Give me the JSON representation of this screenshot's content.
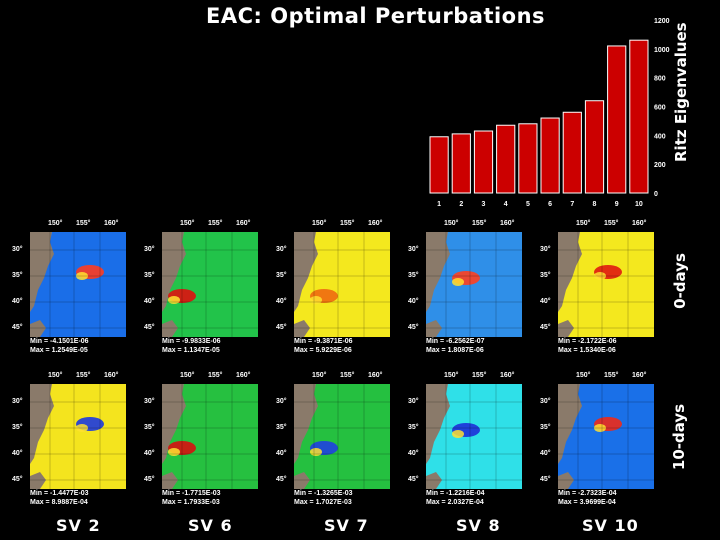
{
  "title": "EAC: Optimal Perturbations",
  "chart_data": [
    {
      "type": "bar",
      "ylabel": "Ritz Eigenvalues",
      "categories": [
        "1",
        "2",
        "3",
        "4",
        "5",
        "6",
        "7",
        "8",
        "9",
        "10"
      ],
      "values": [
        390,
        410,
        430,
        470,
        480,
        520,
        560,
        640,
        1020,
        1060
      ],
      "ylim": [
        0,
        1200
      ],
      "yticks": [
        "0",
        "200",
        "400",
        "600",
        "800",
        "1000",
        "1200"
      ],
      "bar_color": "#cc0000"
    },
    {
      "type": "heatmap",
      "rows": [
        {
          "label": "0-days",
          "panels": [
            {
              "id": "sv2",
              "min": "Min = -4.1501E-06",
              "max": "Max = 1.2549E-05",
              "bg": "#1a6ee8",
              "accent": "#ff3b1f"
            },
            {
              "id": "sv6",
              "min": "Min = -9.9833E-06",
              "max": "Max = 1.1347E-05",
              "bg": "#22c34a",
              "accent": "#e01010"
            },
            {
              "id": "sv7",
              "min": "Min = -9.3871E-06",
              "max": "Max = 5.9229E-06",
              "bg": "#f4e81e",
              "accent": "#f06a10"
            },
            {
              "id": "sv8",
              "min": "Min = -6.2562E-07",
              "max": "Max = 1.8087E-06",
              "bg": "#2f8fe8",
              "accent": "#ff4020"
            },
            {
              "id": "sv10",
              "min": "Min = -2.1722E-06",
              "max": "Max = 1.5340E-06",
              "bg": "#f4e81e",
              "accent": "#e01a10"
            }
          ]
        },
        {
          "label": "10-days",
          "panels": [
            {
              "id": "sv2",
              "min": "Min = -1.4477E-03",
              "max": "Max = 8.9887E-04",
              "bg": "#f4e41e",
              "accent": "#1c38e0"
            },
            {
              "id": "sv6",
              "min": "Min = -1.7715E-03",
              "max": "Max = 1.7933E-03",
              "bg": "#26c040",
              "accent": "#d81010"
            },
            {
              "id": "sv7",
              "min": "Min = -1.3265E-03",
              "max": "Max = 1.7027E-03",
              "bg": "#25c040",
              "accent": "#2040e0"
            },
            {
              "id": "sv8",
              "min": "Min = -1.2216E-04",
              "max": "Max = 2.0327E-04",
              "bg": "#2fe0e8",
              "accent": "#1e30d8"
            },
            {
              "id": "sv10",
              "min": "Min = -2.7323E-04",
              "max": "Max = 3.9699E-04",
              "bg": "#1a70e8",
              "accent": "#ee2a18"
            }
          ]
        }
      ],
      "lon_ticks": [
        "150°",
        "155°",
        "160°"
      ],
      "lat_ticks": [
        "30°",
        "35°",
        "40°",
        "45°"
      ],
      "column_labels": [
        "SV 2",
        "SV 6",
        "SV 7",
        "SV 8",
        "SV 10"
      ]
    }
  ]
}
